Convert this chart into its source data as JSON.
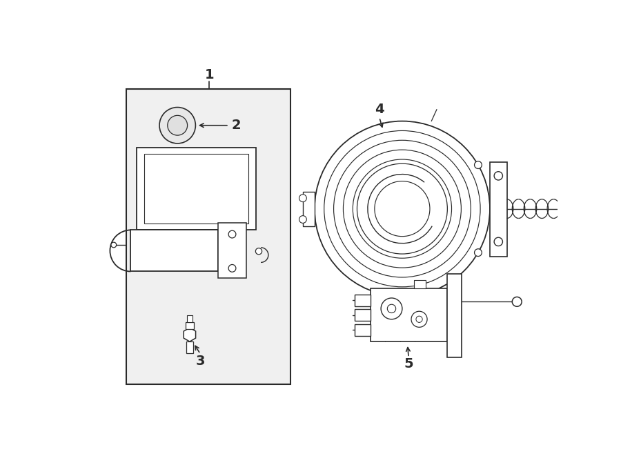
{
  "bg_color": "#ffffff",
  "box1_fill": "#f0f0f0",
  "line_color": "#2a2a2a",
  "fig_width": 9.0,
  "fig_height": 6.61,
  "dpi": 100
}
